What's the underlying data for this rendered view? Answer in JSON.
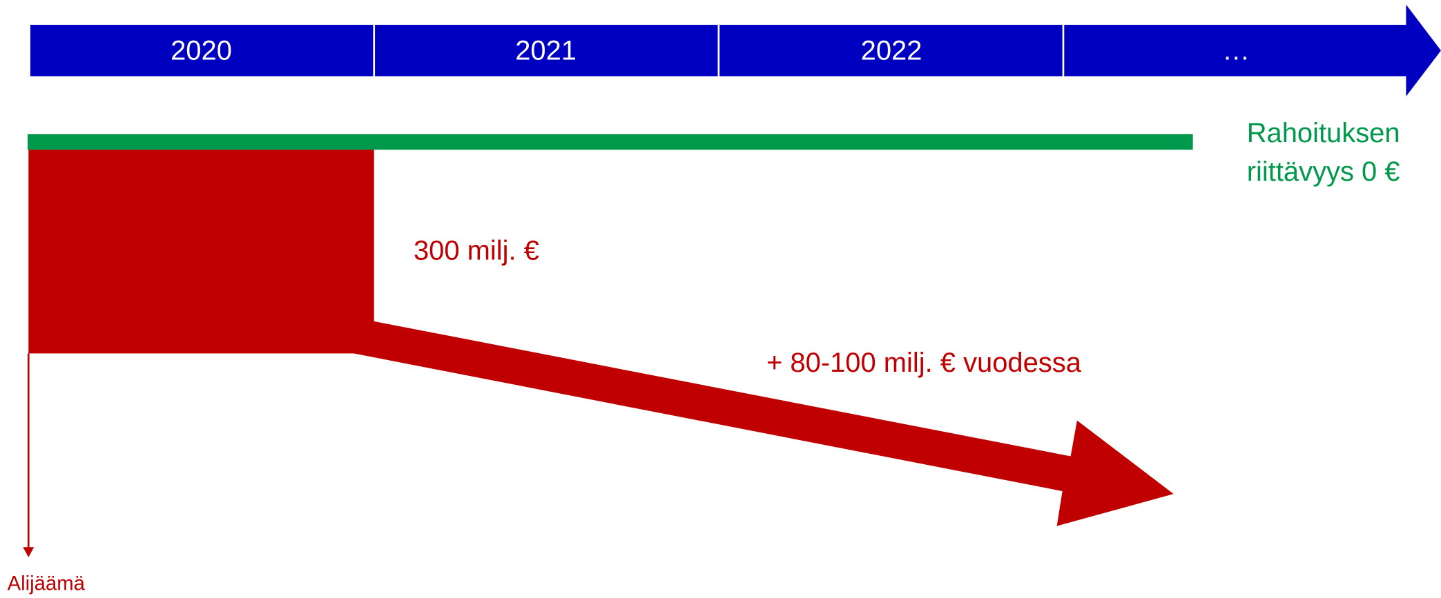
{
  "timeline": {
    "labels": [
      "2020",
      "2021",
      "2022",
      "…"
    ]
  },
  "funding": {
    "lines": [
      "Rahoituksen",
      "riittävyys 0 €"
    ]
  },
  "deficit": {
    "initial": "300 milj. €",
    "growth": "+ 80-100 milj. € vuodessa",
    "axis_label": "Alijäämä"
  }
}
